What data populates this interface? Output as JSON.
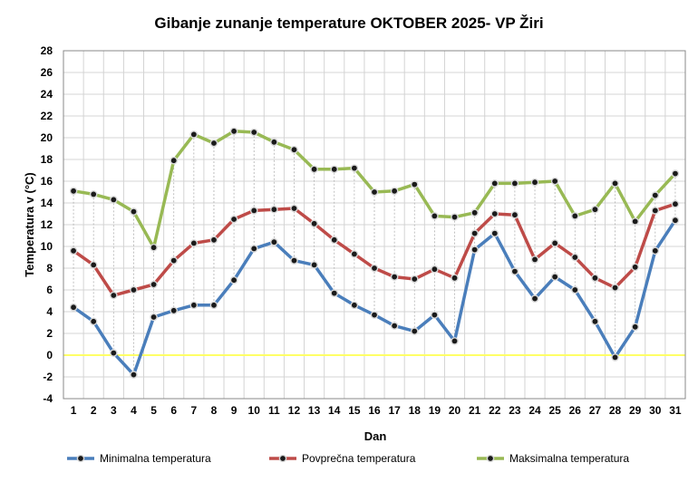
{
  "chart_data": {
    "type": "line",
    "title": "Gibanje zunanje temperature OKTOBER  2025- VP Žiri",
    "xlabel": "Dan",
    "ylabel": "Temperatura v (°C)",
    "ylim": [
      -4,
      28
    ],
    "ytick_step": 2,
    "grid": true,
    "legend_position": "bottom",
    "zero_line_color": "#ffff66",
    "categories": [
      "1",
      "2",
      "3",
      "4",
      "5",
      "6",
      "7",
      "8",
      "9",
      "10",
      "11",
      "12",
      "13",
      "14",
      "15",
      "16",
      "17",
      "18",
      "19",
      "20",
      "21",
      "22",
      "23",
      "24",
      "25",
      "26",
      "27",
      "28",
      "29",
      "30",
      "31"
    ],
    "series": [
      {
        "name": "Minimalna temperatura",
        "color": "#4a7ebb",
        "values": [
          4.4,
          3.1,
          0.2,
          -1.8,
          3.5,
          4.1,
          4.6,
          4.6,
          6.9,
          9.8,
          10.4,
          8.7,
          8.3,
          5.7,
          4.6,
          3.7,
          2.7,
          2.2,
          3.7,
          1.3,
          9.7,
          11.2,
          7.7,
          5.2,
          7.2,
          6.0,
          3.1,
          -0.2,
          2.6,
          9.6,
          12.4
        ]
      },
      {
        "name": "Povprečna temperatura",
        "color": "#be4b48",
        "values": [
          9.6,
          8.3,
          5.5,
          6.0,
          6.5,
          8.7,
          10.3,
          10.6,
          12.5,
          13.3,
          13.4,
          13.5,
          12.1,
          10.6,
          9.3,
          8.0,
          7.2,
          7.0,
          7.9,
          7.1,
          11.2,
          13.0,
          12.9,
          8.8,
          10.3,
          9.0,
          7.1,
          6.2,
          8.1,
          13.3,
          13.9
        ]
      },
      {
        "name": "Maksimalna temperatura",
        "color": "#98b954",
        "values": [
          15.1,
          14.8,
          14.3,
          13.2,
          9.9,
          17.9,
          20.3,
          19.5,
          20.6,
          20.5,
          19.6,
          18.9,
          17.1,
          17.1,
          17.2,
          15.0,
          15.1,
          15.7,
          12.8,
          12.7,
          13.1,
          15.8,
          15.8,
          15.9,
          16.0,
          12.8,
          13.4,
          15.8,
          12.3,
          14.7,
          16.7
        ]
      }
    ]
  }
}
